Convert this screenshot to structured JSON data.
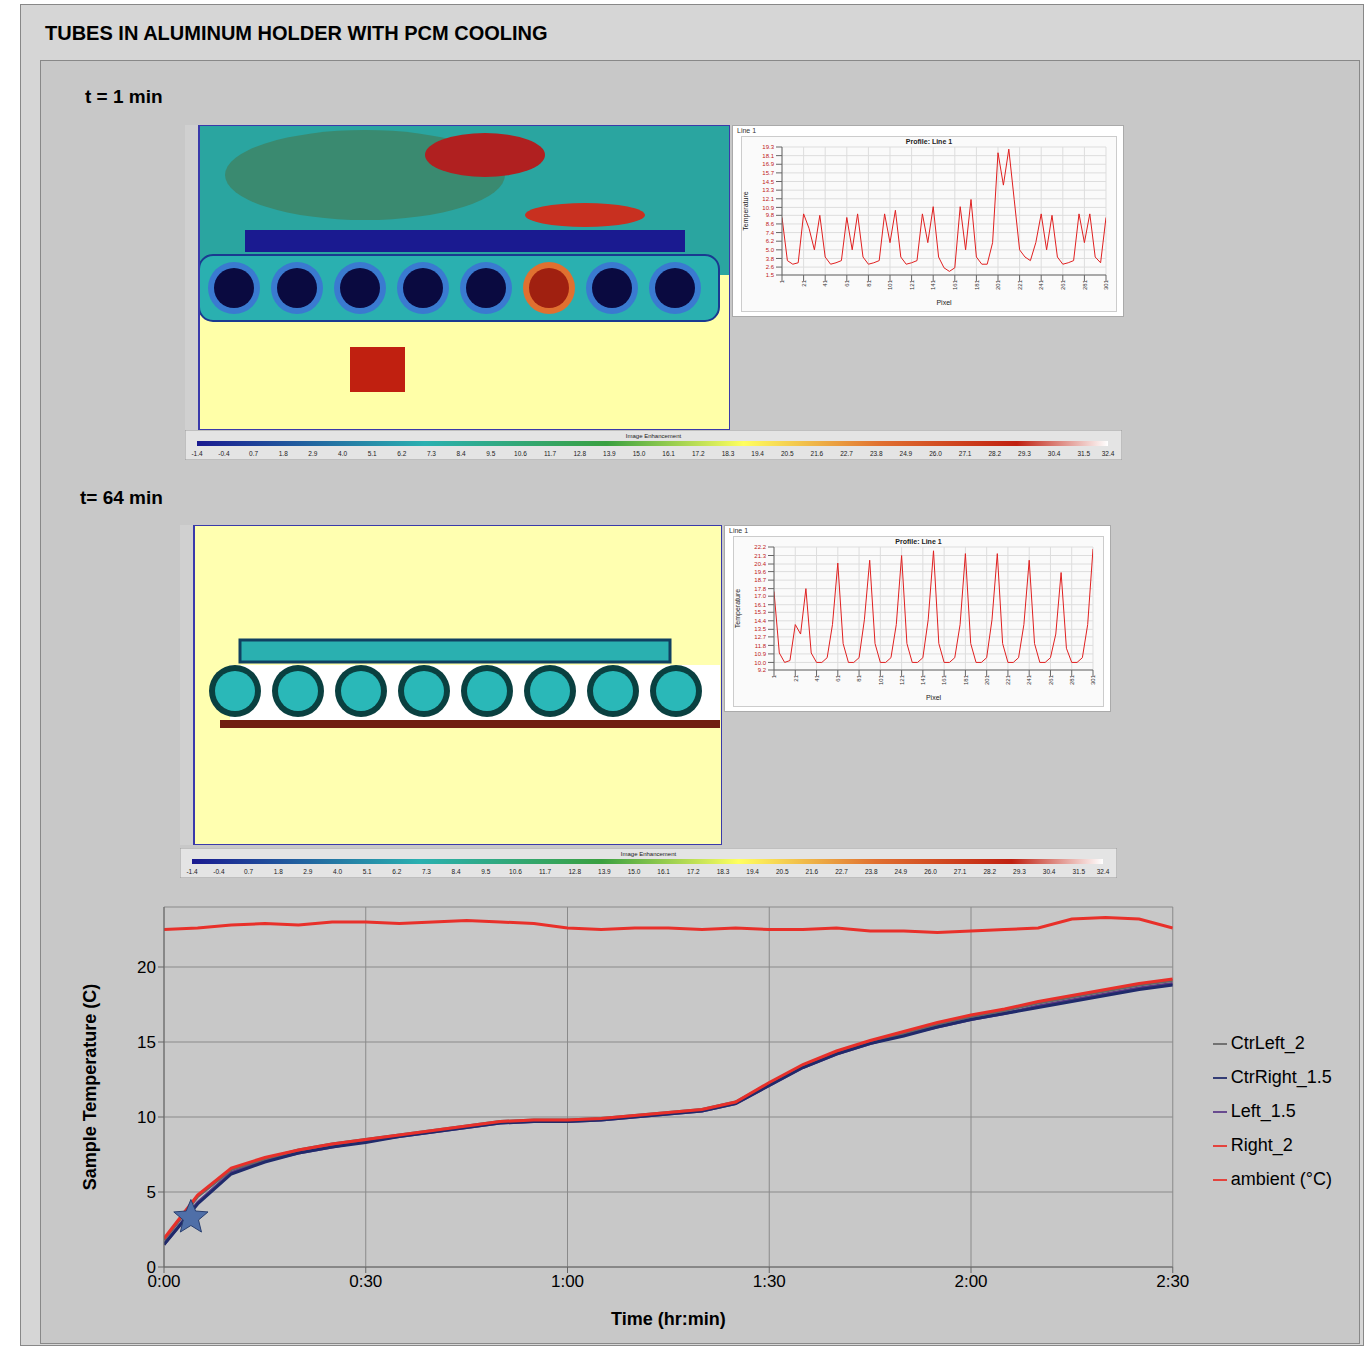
{
  "title": "TUBES IN ALUMINUM HOLDER WITH PCM COOLING",
  "panels": [
    {
      "label": "t = 1 min",
      "window_title": "Line 1",
      "image_enhancement": "Image Enhancement",
      "colorbar": {
        "range": [
          -1.4,
          32.4
        ],
        "ticks": [
          -1.4,
          -0.4,
          0.7,
          1.8,
          2.9,
          {
            "value": 4,
            "label": "4.0"
          },
          5.1,
          6.2,
          7.3,
          8.4,
          9.5,
          10.6,
          11.7,
          12.8,
          13.9,
          {
            "value": 15,
            "label": "15.0"
          },
          16.1,
          17.2,
          18.3,
          19.4,
          20.5,
          21.6,
          22.7,
          23.8,
          24.9,
          {
            "value": 26,
            "label": "26.0"
          },
          27.1,
          28.2,
          29.3,
          30.4,
          31.5,
          32.4
        ]
      }
    },
    {
      "label": "t= 64 min",
      "window_title": "Line 1",
      "image_enhancement": "Image Enhancement",
      "colorbar": {
        "range": [
          -1.4,
          32.4
        ],
        "ticks": [
          -1.4,
          -0.4,
          0.7,
          1.8,
          2.9,
          {
            "value": 4,
            "label": "4.0"
          },
          5.1,
          6.2,
          7.3,
          8.4,
          9.5,
          10.6,
          11.7,
          12.8,
          13.9,
          {
            "value": 15,
            "label": "15.0"
          },
          16.1,
          17.2,
          18.3,
          19.4,
          20.5,
          21.6,
          22.7,
          23.8,
          24.9,
          {
            "value": 26,
            "label": "26.0"
          },
          27.1,
          28.2,
          29.3,
          30.4,
          31.5,
          32.4
        ]
      }
    }
  ],
  "chart_data": [
    {
      "type": "line",
      "title": "Profile: Line 1",
      "x_label": "Pixel",
      "y_label": "Temperature",
      "grid": true,
      "color": "#e02020",
      "x": [
        1,
        6,
        11,
        16,
        21,
        26,
        31,
        36,
        41,
        46,
        51,
        56,
        61,
        66,
        71,
        76,
        81,
        86,
        91,
        96,
        101,
        106,
        111,
        116,
        121,
        126,
        131,
        136,
        141,
        146,
        151,
        156,
        161,
        166,
        171,
        176,
        181,
        186,
        191,
        196,
        201,
        206,
        211,
        216,
        221,
        226,
        231,
        236,
        241,
        246,
        251,
        256,
        261,
        266,
        271,
        276,
        281,
        286,
        291,
        296,
        301
      ],
      "values": [
        9.5,
        3.5,
        3.0,
        3.2,
        10.0,
        8.0,
        5.0,
        9.8,
        4.0,
        3.0,
        3.2,
        3.5,
        9.5,
        5.0,
        10.0,
        4.0,
        3.0,
        3.2,
        3.5,
        10.0,
        6.0,
        10.5,
        4.0,
        3.0,
        3.2,
        3.5,
        10.0,
        6.0,
        11.0,
        4.0,
        2.5,
        2.0,
        2.5,
        11.0,
        5.0,
        12.0,
        4.0,
        3.0,
        3.0,
        6.0,
        18.5,
        14.0,
        19.0,
        12.0,
        5.0,
        4.0,
        3.5,
        6.0,
        10.0,
        5.0,
        9.8,
        4.0,
        3.0,
        3.2,
        3.5,
        10.0,
        6.0,
        10.0,
        4.0,
        3.2,
        9.5
      ],
      "xlim": [
        1,
        301
      ],
      "xticks": [
        1,
        21,
        41,
        61,
        81,
        101,
        121,
        141,
        161,
        181,
        201,
        221,
        241,
        261,
        281,
        301
      ],
      "ylim": [
        1.5,
        19.3
      ],
      "yticks": [
        1.5,
        2.6,
        3.8,
        {
          "value": 5,
          "label": "5.0"
        },
        6.2,
        7.4,
        8.6,
        9.8,
        10.9,
        12.1,
        13.3,
        14.5,
        15.7,
        16.9,
        18.1,
        19.3
      ]
    },
    {
      "type": "line",
      "title": "Profile: Line 1",
      "x_label": "Pixel",
      "y_label": "Temperature",
      "grid": true,
      "color": "#e02020",
      "x": [
        1,
        6,
        11,
        16,
        21,
        26,
        31,
        36,
        41,
        46,
        51,
        56,
        61,
        66,
        71,
        76,
        81,
        86,
        91,
        96,
        101,
        106,
        111,
        116,
        121,
        126,
        131,
        136,
        141,
        146,
        151,
        156,
        161,
        166,
        171,
        176,
        181,
        186,
        191,
        196,
        201,
        206,
        211,
        216,
        221,
        226,
        231,
        236,
        241,
        246,
        251,
        256,
        261,
        266,
        271,
        276,
        281,
        286,
        291,
        296,
        301
      ],
      "values": [
        17.5,
        11,
        10,
        10.2,
        14,
        13,
        17.8,
        11,
        10,
        10,
        10.5,
        14,
        20.5,
        12,
        10,
        10,
        10.5,
        14.5,
        20.8,
        12,
        10,
        10,
        10.5,
        14,
        21.3,
        12,
        10,
        10,
        10.5,
        14.5,
        21.8,
        12,
        10,
        10,
        10.5,
        14,
        21.5,
        12,
        10,
        10,
        10.5,
        14.5,
        21.5,
        12,
        10,
        10,
        10.5,
        14,
        20.8,
        12,
        10,
        10,
        10.5,
        13,
        19.5,
        11.5,
        10,
        10,
        10.5,
        14,
        22
      ],
      "xlim": [
        1,
        301
      ],
      "xticks": [
        1,
        21,
        41,
        61,
        81,
        101,
        121,
        141,
        161,
        181,
        201,
        221,
        241,
        261,
        281,
        301
      ],
      "ylim": [
        9.2,
        22.2
      ],
      "yticks": [
        9.2,
        {
          "value": 10,
          "label": "10.0"
        },
        10.9,
        11.8,
        12.7,
        13.5,
        14.4,
        15.3,
        16.1,
        {
          "value": 17,
          "label": "17.0"
        },
        17.8,
        18.7,
        19.6,
        20.4,
        21.3,
        22.2
      ]
    },
    {
      "type": "line",
      "x_label": "Time (hr:min)",
      "y_label": "Sample Temperature (C)",
      "grid": true,
      "legend": "right",
      "x": [
        0,
        5,
        10,
        15,
        20,
        25,
        30,
        35,
        40,
        45,
        50,
        55,
        60,
        65,
        70,
        75,
        80,
        85,
        90,
        95,
        100,
        105,
        110,
        115,
        120,
        125,
        130,
        135,
        140,
        145,
        150
      ],
      "xlim": [
        0,
        150
      ],
      "xticks": [
        {
          "value": 0,
          "label": "0:00"
        },
        {
          "value": 30,
          "label": "0:30"
        },
        {
          "value": 60,
          "label": "1:00"
        },
        {
          "value": 90,
          "label": "1:30"
        },
        {
          "value": 120,
          "label": "2:00"
        },
        {
          "value": 150,
          "label": "2:30"
        }
      ],
      "ylim": [
        0,
        24
      ],
      "yticks": [
        0,
        5,
        10,
        15,
        20
      ],
      "highlight": {
        "x": 4,
        "y": 3.3,
        "marker": "star",
        "color": "#4f6fa8"
      },
      "series": [
        {
          "name": "ambient (°C)",
          "color": "#e8302a",
          "values": [
            22.5,
            22.6,
            22.8,
            22.9,
            22.8,
            23.0,
            23.0,
            22.9,
            23.0,
            23.1,
            23.0,
            22.9,
            22.6,
            22.5,
            22.6,
            22.6,
            22.5,
            22.6,
            22.5,
            22.5,
            22.6,
            22.4,
            22.4,
            22.3,
            22.4,
            22.5,
            22.6,
            23.2,
            23.3,
            23.2,
            22.6
          ]
        },
        {
          "name": "Left_1.5",
          "color": "#5b3a87",
          "values": [
            1.5,
            4.3,
            6.3,
            7.1,
            7.6,
            8.0,
            8.4,
            8.7,
            9.0,
            9.3,
            9.6,
            9.7,
            9.7,
            9.8,
            10.0,
            10.2,
            10.4,
            10.9,
            12.1,
            13.3,
            14.2,
            14.9,
            15.5,
            16.0,
            16.5,
            16.9,
            17.4,
            17.8,
            18.2,
            18.6,
            18.9
          ]
        },
        {
          "name": "CtrLeft_2",
          "color": "#666666",
          "values": [
            1.8,
            4.7,
            6.5,
            7.2,
            7.8,
            8.2,
            8.5,
            8.8,
            9.1,
            9.4,
            9.7,
            9.8,
            9.8,
            9.9,
            10.1,
            10.3,
            10.5,
            11.0,
            12.2,
            13.4,
            14.3,
            15.0,
            15.6,
            16.2,
            16.7,
            17.1,
            17.6,
            18.0,
            18.4,
            18.8,
            19.1
          ]
        },
        {
          "name": "CtrRight_1.5",
          "color": "#1f2a6b",
          "values": [
            1.5,
            4.2,
            6.2,
            7.0,
            7.6,
            8.0,
            8.3,
            8.7,
            9.0,
            9.3,
            9.6,
            9.7,
            9.7,
            9.8,
            10.0,
            10.2,
            10.4,
            10.9,
            12.1,
            13.3,
            14.2,
            14.9,
            15.4,
            16.0,
            16.5,
            16.9,
            17.3,
            17.7,
            18.1,
            18.5,
            18.8
          ]
        },
        {
          "name": "Right_2",
          "color": "#e8302a",
          "values": [
            1.9,
            4.8,
            6.6,
            7.3,
            7.8,
            8.2,
            8.5,
            8.8,
            9.1,
            9.4,
            9.7,
            9.8,
            9.8,
            9.9,
            10.1,
            10.3,
            10.5,
            11.0,
            12.3,
            13.5,
            14.4,
            15.1,
            15.7,
            16.3,
            16.8,
            17.2,
            17.7,
            18.1,
            18.5,
            18.9,
            19.2
          ]
        }
      ]
    }
  ]
}
